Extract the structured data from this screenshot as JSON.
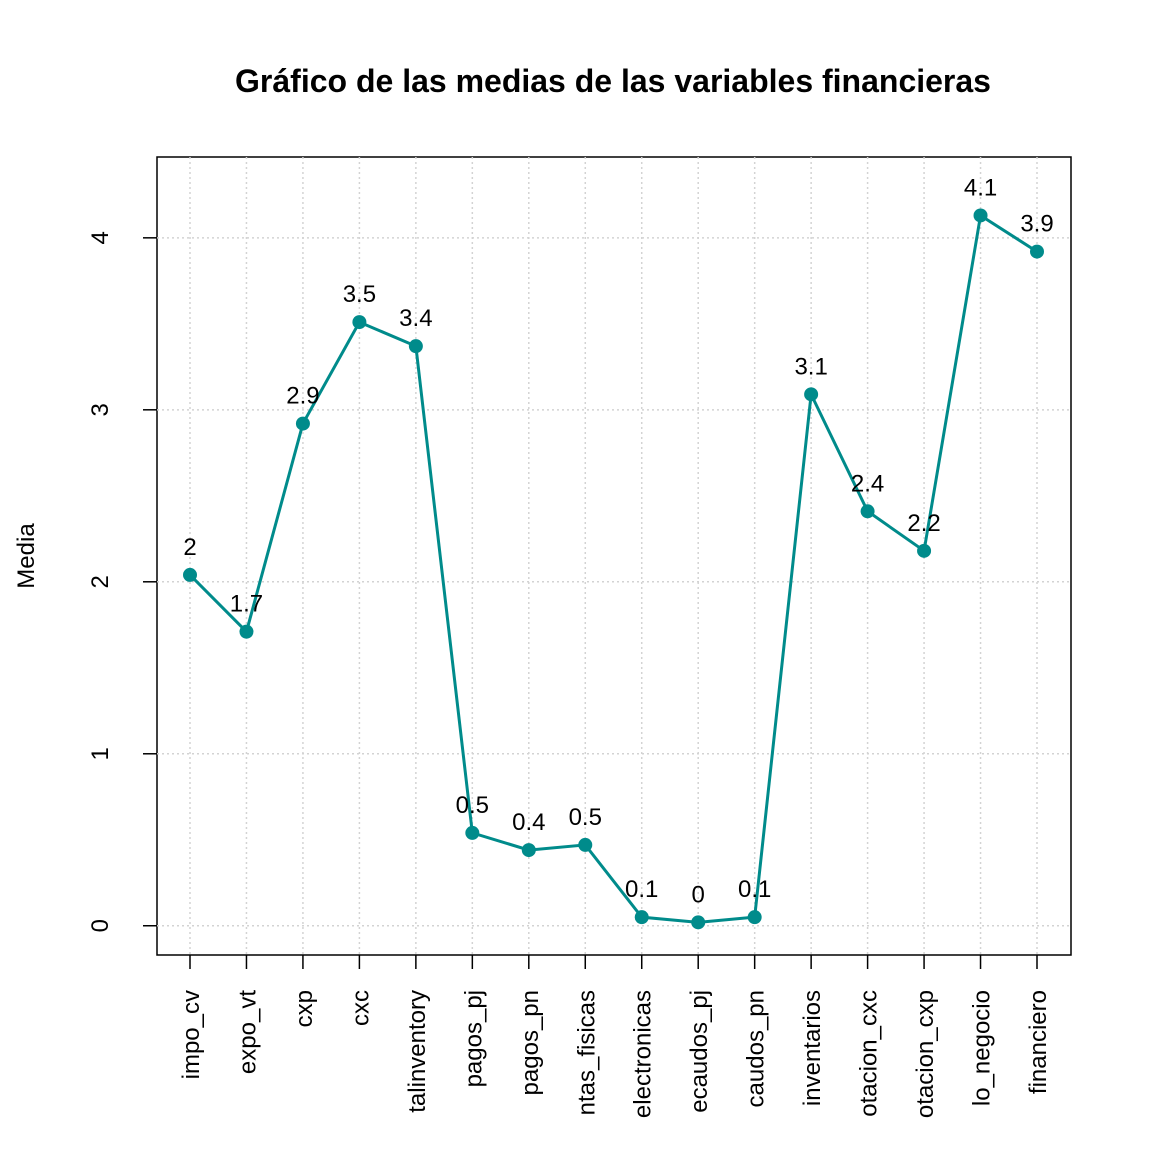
{
  "chart_data": {
    "type": "line",
    "title": "Gráfico de las medias de las variables financieras",
    "y_label": "Media",
    "categories": [
      "impo_cv",
      "expo_vt",
      "cxp",
      "cxc",
      "talinventory",
      "pagos_pj",
      "pagos_pn",
      "ntas_fisicas",
      "electronicas",
      "ecaudos_pj",
      "caudos_pn",
      "inventarios",
      "otacion_cxc",
      "otacion_cxp",
      "lo_negocio",
      "financiero"
    ],
    "series": [
      {
        "name": "Media",
        "color": "#008b8b",
        "values": [
          2.04,
          1.71,
          2.92,
          3.51,
          3.37,
          0.54,
          0.44,
          0.47,
          0.05,
          0.02,
          0.05,
          3.09,
          2.41,
          2.18,
          4.13,
          3.92
        ],
        "value_labels": [
          "2",
          "1.7",
          "2.9",
          "3.5",
          "3.4",
          "0.5",
          "0.4",
          "0.5",
          "0.1",
          "0",
          "0.1",
          "3.1",
          "2.4",
          "2.2",
          "4.1",
          "3.9"
        ]
      }
    ],
    "ylim": [
      -0.17,
      4.47
    ],
    "yticks": [
      0,
      1,
      2,
      3,
      4
    ],
    "grid": true
  }
}
